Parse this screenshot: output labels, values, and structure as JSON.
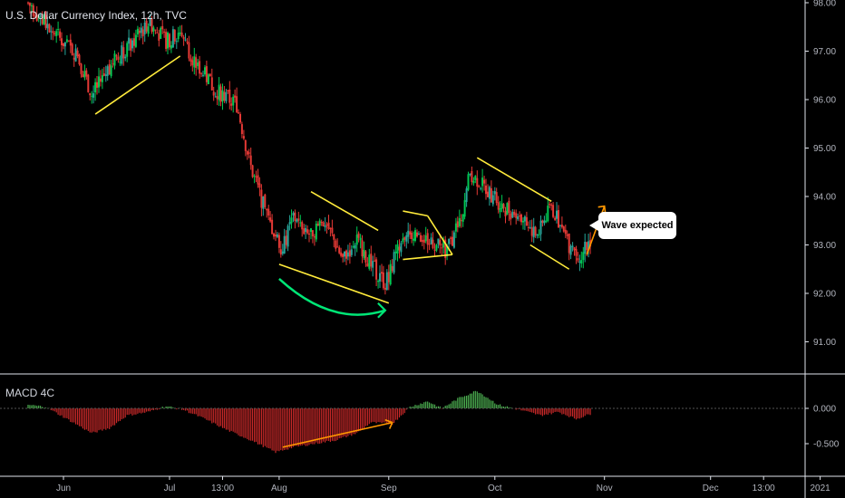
{
  "header": {
    "title": "U.S. Dollar Currency Index, 12h, TVC"
  },
  "indicator": {
    "title": "MACD 4C"
  },
  "annotation": {
    "callout_text": "Wave expected"
  },
  "colors": {
    "up": "#26a69a",
    "up_bright": "#00c853",
    "down": "#e53935",
    "macd_pos": "#4caf50",
    "macd_neg": "#c62828",
    "trendline": "#ffeb3b",
    "arrow_orange": "#ff9800",
    "arrow_green": "#00e676"
  },
  "chart_data": [
    {
      "type": "candlestick",
      "title": "U.S. Dollar Currency Index, 12h, TVC",
      "ylim": [
        90.3,
        98.1
      ],
      "y_ticks": [
        "98.00",
        "97.00",
        "96.00",
        "95.00",
        "94.00",
        "93.00",
        "92.00",
        "91.00"
      ],
      "x_ticks": [
        "Jun",
        "Jul",
        "13:00",
        "Aug",
        "Sep",
        "Oct",
        "Nov",
        "Dec",
        "13:00",
        "2021"
      ],
      "close_path": [
        [
          "2020-05-22",
          98.0
        ],
        [
          "2020-05-29",
          97.4
        ],
        [
          "2020-06-05",
          96.9
        ],
        [
          "2020-06-09",
          96.1
        ],
        [
          "2020-06-15",
          96.8
        ],
        [
          "2020-06-22",
          97.3
        ],
        [
          "2020-06-25",
          97.6
        ],
        [
          "2020-06-30",
          97.2
        ],
        [
          "2020-07-04",
          97.4
        ],
        [
          "2020-07-08",
          96.8
        ],
        [
          "2020-07-14",
          96.2
        ],
        [
          "2020-07-20",
          95.9
        ],
        [
          "2020-07-24",
          94.6
        ],
        [
          "2020-07-29",
          93.5
        ],
        [
          "2020-08-02",
          92.9
        ],
        [
          "2020-08-05",
          93.6
        ],
        [
          "2020-08-09",
          93.2
        ],
        [
          "2020-08-14",
          93.5
        ],
        [
          "2020-08-19",
          92.7
        ],
        [
          "2020-08-23",
          93.1
        ],
        [
          "2020-08-27",
          92.6
        ],
        [
          "2020-08-31",
          92.2
        ],
        [
          "2020-09-03",
          92.8
        ],
        [
          "2020-09-08",
          93.3
        ],
        [
          "2020-09-12",
          93.1
        ],
        [
          "2020-09-17",
          92.9
        ],
        [
          "2020-09-21",
          93.4
        ],
        [
          "2020-09-24",
          94.5
        ],
        [
          "2020-09-28",
          94.2
        ],
        [
          "2020-10-03",
          93.8
        ],
        [
          "2020-10-08",
          93.6
        ],
        [
          "2020-10-13",
          93.2
        ],
        [
          "2020-10-17",
          93.8
        ],
        [
          "2020-10-22",
          93.0
        ],
        [
          "2020-10-25",
          92.8
        ],
        [
          "2020-10-28",
          93.1
        ]
      ]
    },
    {
      "type": "bar",
      "title": "MACD 4C",
      "ylim": [
        -0.72,
        0.22
      ],
      "y_ticks": [
        "0.000",
        "-0.500"
      ],
      "histogram_path": [
        [
          "2020-05-22",
          0.05
        ],
        [
          "2020-05-27",
          0.02
        ],
        [
          "2020-06-02",
          -0.15
        ],
        [
          "2020-06-09",
          -0.35
        ],
        [
          "2020-06-14",
          -0.28
        ],
        [
          "2020-06-19",
          -0.1
        ],
        [
          "2020-06-25",
          -0.05
        ],
        [
          "2020-06-30",
          0.03
        ],
        [
          "2020-07-05",
          -0.02
        ],
        [
          "2020-07-11",
          -0.15
        ],
        [
          "2020-07-17",
          -0.3
        ],
        [
          "2020-07-24",
          -0.45
        ],
        [
          "2020-07-31",
          -0.62
        ],
        [
          "2020-08-05",
          -0.55
        ],
        [
          "2020-08-11",
          -0.5
        ],
        [
          "2020-08-17",
          -0.45
        ],
        [
          "2020-08-23",
          -0.35
        ],
        [
          "2020-08-27",
          -0.2
        ],
        [
          "2020-09-02",
          -0.22
        ],
        [
          "2020-09-07",
          0.02
        ],
        [
          "2020-09-12",
          0.1
        ],
        [
          "2020-09-16",
          0.0
        ],
        [
          "2020-09-21",
          0.15
        ],
        [
          "2020-09-26",
          0.25
        ],
        [
          "2020-10-02",
          0.05
        ],
        [
          "2020-10-08",
          -0.02
        ],
        [
          "2020-10-14",
          -0.1
        ],
        [
          "2020-10-19",
          -0.05
        ],
        [
          "2020-10-24",
          -0.15
        ],
        [
          "2020-10-28",
          -0.08
        ]
      ]
    }
  ]
}
